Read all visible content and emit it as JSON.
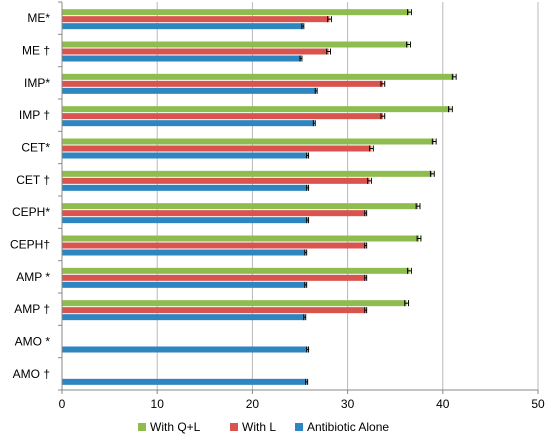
{
  "chart_data": {
    "type": "bar",
    "orientation": "horizontal",
    "categories": [
      "ME*",
      "ME †",
      "IMP*",
      "IMP †",
      "CET*",
      "CET †",
      "CEPH*",
      "CEPH†",
      "AMP *",
      "AMP †",
      "AMO *",
      "AMO †"
    ],
    "series": [
      {
        "name": "With Q+L",
        "color": "#8fbc4f",
        "values": [
          36.5,
          36.4,
          41.2,
          40.8,
          39.1,
          38.9,
          37.4,
          37.5,
          36.5,
          36.2,
          null,
          null
        ],
        "errors": [
          0.2,
          0.2,
          0.2,
          0.2,
          0.2,
          0.2,
          0.2,
          0.2,
          0.2,
          0.2,
          null,
          null
        ]
      },
      {
        "name": "With L",
        "color": "#d9534f",
        "values": [
          28.1,
          28.0,
          33.7,
          33.7,
          32.5,
          32.3,
          31.9,
          31.9,
          31.9,
          31.9,
          null,
          null
        ],
        "errors": [
          0.2,
          0.2,
          0.2,
          0.2,
          0.2,
          0.2,
          0.1,
          0.1,
          0.1,
          0.1,
          null,
          null
        ]
      },
      {
        "name": "Antibiotic Alone",
        "color": "#2e86c1",
        "values": [
          25.3,
          25.1,
          26.7,
          26.5,
          25.8,
          25.8,
          25.8,
          25.6,
          25.6,
          25.5,
          25.8,
          25.7
        ],
        "errors": [
          0.1,
          0.1,
          0.1,
          0.1,
          0.1,
          0.1,
          0.1,
          0.1,
          0.1,
          0.1,
          0.1,
          0.1
        ]
      }
    ],
    "xlim": [
      0,
      50
    ],
    "xticks": [
      0,
      10,
      20,
      30,
      40,
      50
    ],
    "grid": "vertical",
    "legend": "bottom"
  }
}
